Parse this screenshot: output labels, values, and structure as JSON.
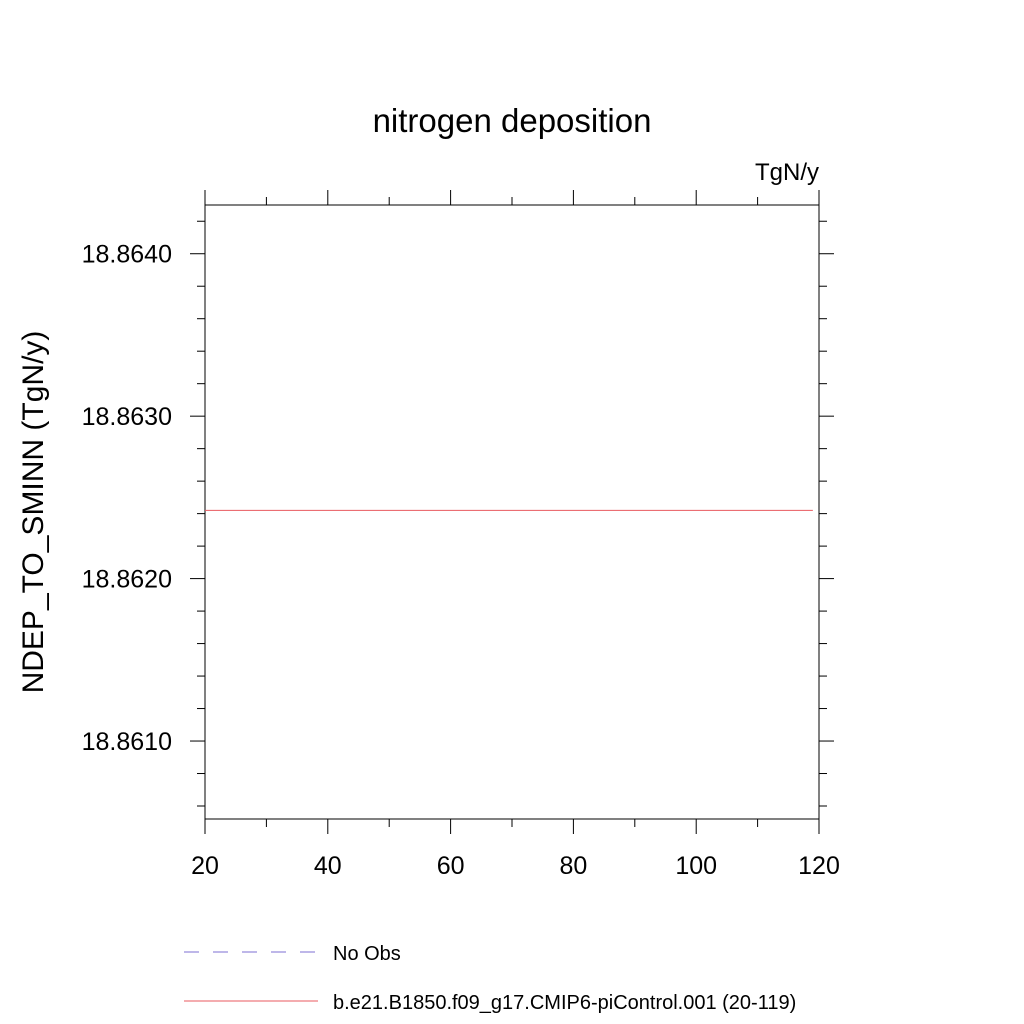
{
  "chart_data": {
    "type": "line",
    "title": "nitrogen deposition",
    "units_label": "TgN/y",
    "ylabel": "NDEP_TO_SMINN  (TgN/y)",
    "xlabel": "",
    "xlim": [
      20,
      120
    ],
    "ylim": [
      18.86052,
      18.8643
    ],
    "x_ticks": [
      20,
      40,
      60,
      80,
      100,
      120
    ],
    "x_tick_labels": [
      "20",
      "40",
      "60",
      "80",
      "100",
      "120"
    ],
    "x_minor_step": 10,
    "y_ticks": [
      18.861,
      18.862,
      18.863,
      18.864
    ],
    "y_tick_labels": [
      "18.8610",
      "18.8620",
      "18.8630",
      "18.8640"
    ],
    "y_minor_step": 0.0002,
    "grid": false,
    "legend_position": "bottom",
    "series": [
      {
        "name": "No Obs",
        "color": "#7d6fd3",
        "dash": true,
        "x": [],
        "y": []
      },
      {
        "name": "b.e21.B1850.f09_g17.CMIP6-piControl.001 (20-119)",
        "color": "#e8595f",
        "dash": false,
        "x": [
          20,
          119
        ],
        "y": [
          18.86242,
          18.86242
        ]
      }
    ]
  }
}
